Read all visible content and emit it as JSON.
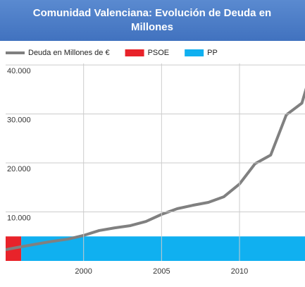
{
  "chart_data": {
    "type": "line",
    "title": "Comunidad Valenciana: Evolución de Deuda en Millones",
    "x": [
      1995,
      1996,
      1997,
      1998,
      1999,
      2000,
      2001,
      2002,
      2003,
      2004,
      2005,
      2006,
      2007,
      2008,
      2009,
      2010,
      2011,
      2012,
      2013,
      2014,
      2015
    ],
    "series": [
      {
        "name": "Deuda en Millones de €",
        "color": "#808080",
        "values": [
          2300,
          2900,
          3450,
          4000,
          4450,
          5200,
          6200,
          6750,
          7200,
          8050,
          9500,
          10650,
          11350,
          11950,
          13100,
          15700,
          19850,
          21600,
          29800,
          32200,
          43000
        ]
      }
    ],
    "bands": [
      {
        "name": "PSOE",
        "color": "#e8232a",
        "start": 1995,
        "end": 1996,
        "value": 5000
      },
      {
        "name": "PP",
        "color": "#10b0f0",
        "start": 1996,
        "end": 2015,
        "value": 5000
      }
    ],
    "xlim": [
      1995,
      2014.2
    ],
    "xticks": [
      2000,
      2005,
      2010
    ],
    "ylim": [
      0,
      40300
    ],
    "yticks": [
      {
        "value": 10000,
        "label": "10.000"
      },
      {
        "value": 20000,
        "label": "20.000"
      },
      {
        "value": 30000,
        "label": "30.000"
      },
      {
        "value": 40000,
        "label": "40.000"
      }
    ],
    "grid": true
  }
}
